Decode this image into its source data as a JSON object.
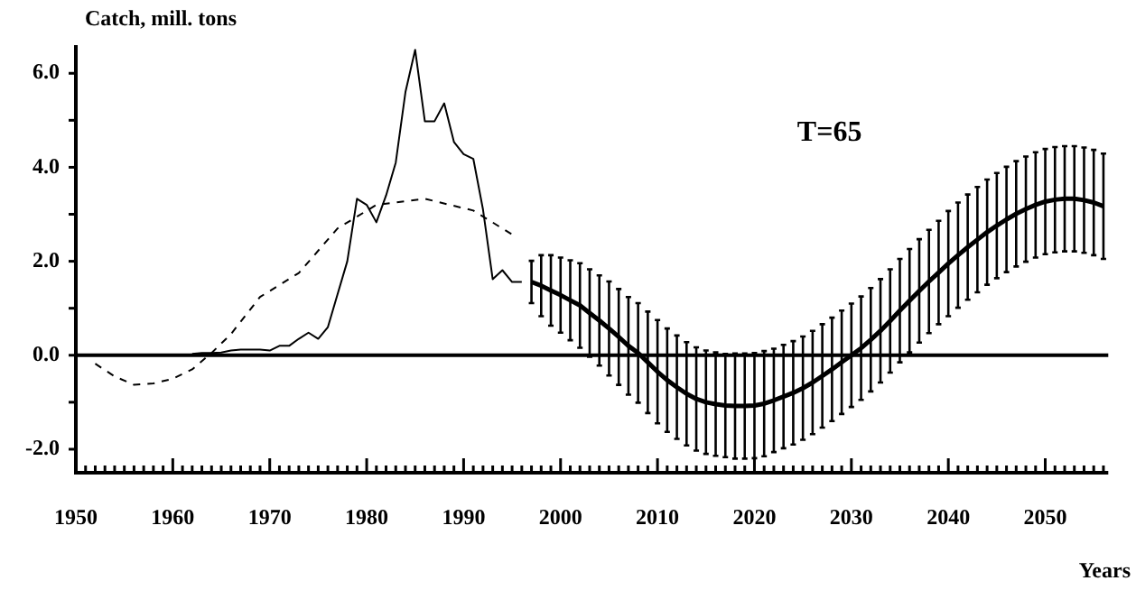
{
  "chart_data": {
    "type": "line",
    "ylabel": "Catch, mill. tons",
    "xlabel": "Years",
    "annotations": [
      "T=65"
    ],
    "marker": "none",
    "xlim": [
      1950,
      2056.5
    ],
    "ylim": [
      -2.5,
      6.6
    ],
    "xticks": [
      1950,
      {
        "value": 1951,
        "label": null
      },
      {
        "value": 1952,
        "label": null
      },
      {
        "value": 1953,
        "label": null
      },
      {
        "value": 1954,
        "label": null
      },
      {
        "value": 1955,
        "label": null
      },
      {
        "value": 1956,
        "label": null
      },
      {
        "value": 1957,
        "label": null
      },
      {
        "value": 1958,
        "label": null
      },
      {
        "value": 1959,
        "label": null
      },
      1960,
      {
        "value": 1961,
        "label": null
      },
      {
        "value": 1962,
        "label": null
      },
      {
        "value": 1963,
        "label": null
      },
      {
        "value": 1964,
        "label": null
      },
      {
        "value": 1965,
        "label": null
      },
      {
        "value": 1966,
        "label": null
      },
      {
        "value": 1967,
        "label": null
      },
      {
        "value": 1968,
        "label": null
      },
      {
        "value": 1969,
        "label": null
      },
      1970,
      {
        "value": 1971,
        "label": null
      },
      {
        "value": 1972,
        "label": null
      },
      {
        "value": 1973,
        "label": null
      },
      {
        "value": 1974,
        "label": null
      },
      {
        "value": 1975,
        "label": null
      },
      {
        "value": 1976,
        "label": null
      },
      {
        "value": 1977,
        "label": null
      },
      {
        "value": 1978,
        "label": null
      },
      {
        "value": 1979,
        "label": null
      },
      1980,
      {
        "value": 1981,
        "label": null
      },
      {
        "value": 1982,
        "label": null
      },
      {
        "value": 1983,
        "label": null
      },
      {
        "value": 1984,
        "label": null
      },
      {
        "value": 1985,
        "label": null
      },
      {
        "value": 1986,
        "label": null
      },
      {
        "value": 1987,
        "label": null
      },
      {
        "value": 1988,
        "label": null
      },
      {
        "value": 1989,
        "label": null
      },
      1990,
      {
        "value": 1991,
        "label": null
      },
      {
        "value": 1992,
        "label": null
      },
      {
        "value": 1993,
        "label": null
      },
      {
        "value": 1994,
        "label": null
      },
      {
        "value": 1995,
        "label": null
      },
      {
        "value": 1996,
        "label": null
      },
      {
        "value": 1997,
        "label": null
      },
      {
        "value": 1998,
        "label": null
      },
      {
        "value": 1999,
        "label": null
      },
      2000,
      {
        "value": 2001,
        "label": null
      },
      {
        "value": 2002,
        "label": null
      },
      {
        "value": 2003,
        "label": null
      },
      {
        "value": 2004,
        "label": null
      },
      {
        "value": 2005,
        "label": null
      },
      {
        "value": 2006,
        "label": null
      },
      {
        "value": 2007,
        "label": null
      },
      {
        "value": 2008,
        "label": null
      },
      {
        "value": 2009,
        "label": null
      },
      2010,
      {
        "value": 2011,
        "label": null
      },
      {
        "value": 2012,
        "label": null
      },
      {
        "value": 2013,
        "label": null
      },
      {
        "value": 2014,
        "label": null
      },
      {
        "value": 2015,
        "label": null
      },
      {
        "value": 2016,
        "label": null
      },
      {
        "value": 2017,
        "label": null
      },
      {
        "value": 2018,
        "label": null
      },
      {
        "value": 2019,
        "label": null
      },
      2020,
      {
        "value": 2021,
        "label": null
      },
      {
        "value": 2022,
        "label": null
      },
      {
        "value": 2023,
        "label": null
      },
      {
        "value": 2024,
        "label": null
      },
      {
        "value": 2025,
        "label": null
      },
      {
        "value": 2026,
        "label": null
      },
      {
        "value": 2027,
        "label": null
      },
      {
        "value": 2028,
        "label": null
      },
      {
        "value": 2029,
        "label": null
      },
      2030,
      {
        "value": 2031,
        "label": null
      },
      {
        "value": 2032,
        "label": null
      },
      {
        "value": 2033,
        "label": null
      },
      {
        "value": 2034,
        "label": null
      },
      {
        "value": 2035,
        "label": null
      },
      {
        "value": 2036,
        "label": null
      },
      {
        "value": 2037,
        "label": null
      },
      {
        "value": 2038,
        "label": null
      },
      {
        "value": 2039,
        "label": null
      },
      2040,
      {
        "value": 2041,
        "label": null
      },
      {
        "value": 2042,
        "label": null
      },
      {
        "value": 2043,
        "label": null
      },
      {
        "value": 2044,
        "label": null
      },
      {
        "value": 2045,
        "label": null
      },
      {
        "value": 2046,
        "label": null
      },
      {
        "value": 2047,
        "label": null
      },
      {
        "value": 2048,
        "label": null
      },
      {
        "value": 2049,
        "label": null
      },
      2050,
      {
        "value": 2051,
        "label": null
      },
      {
        "value": 2052,
        "label": null
      },
      {
        "value": 2053,
        "label": null
      },
      {
        "value": 2054,
        "label": null
      },
      {
        "value": 2055,
        "label": null
      },
      {
        "value": 2056,
        "label": null
      }
    ],
    "yticks": [
      {
        "value": -2,
        "label": "-2.0"
      },
      {
        "value": -1,
        "label": null
      },
      {
        "value": 0,
        "label": "0.0"
      },
      {
        "value": 1,
        "label": null
      },
      {
        "value": 2,
        "label": "2.0"
      },
      {
        "value": 3,
        "label": null
      },
      {
        "value": 4,
        "label": "4.0"
      },
      {
        "value": 5,
        "label": null
      },
      {
        "value": 6,
        "label": "6.0"
      }
    ],
    "ref_lines": [
      {
        "axis": "y",
        "value": 0,
        "color": "#000000"
      }
    ],
    "series": [
      {
        "color": "#000000",
        "line_style": "solid",
        "x": [
          1962,
          1963,
          1964,
          1965,
          1966,
          1967,
          1968,
          1969,
          1970,
          1971,
          1972,
          1973,
          1974,
          1975,
          1976,
          1977,
          1978,
          1979,
          1980,
          1981,
          1982,
          1983,
          1984,
          1985,
          1986,
          1987,
          1988,
          1989,
          1990,
          1991,
          1992,
          1993,
          1994,
          1995,
          1996
        ],
        "values": [
          0.03,
          0.05,
          0.05,
          0.06,
          0.1,
          0.12,
          0.12,
          0.12,
          0.1,
          0.2,
          0.2,
          0.35,
          0.48,
          0.35,
          0.6,
          1.3,
          2.0,
          3.33,
          3.2,
          2.83,
          3.4,
          4.1,
          5.6,
          6.5,
          4.98,
          4.98,
          5.36,
          4.54,
          4.28,
          4.18,
          3.1,
          1.62,
          1.81,
          1.56,
          1.56
        ]
      },
      {
        "color": "#000000",
        "line_style": "dashed",
        "x": [
          1952,
          1954,
          1956,
          1958,
          1960,
          1962,
          1964,
          1966,
          1969,
          1973,
          1977,
          1981,
          1986,
          1991,
          1995
        ],
        "values": [
          -0.18,
          -0.45,
          -0.63,
          -0.6,
          -0.5,
          -0.3,
          0.05,
          0.45,
          1.24,
          1.75,
          2.7,
          3.2,
          3.33,
          3.08,
          2.57
        ]
      },
      {
        "color": "#000000",
        "line_style": "solid",
        "x": [
          1997,
          1998,
          1999,
          2000,
          2001,
          2002,
          2003,
          2004,
          2005,
          2006,
          2007,
          2008,
          2009,
          2010,
          2011,
          2012,
          2013,
          2014,
          2015,
          2016,
          2017,
          2018,
          2019,
          2020,
          2021,
          2022,
          2023,
          2024,
          2025,
          2026,
          2027,
          2028,
          2029,
          2030,
          2031,
          2032,
          2033,
          2034,
          2035,
          2036,
          2037,
          2038,
          2039,
          2040,
          2041,
          2042,
          2043,
          2044,
          2045,
          2046,
          2047,
          2048,
          2049,
          2050,
          2051,
          2052,
          2053,
          2054,
          2055,
          2056
        ],
        "values": [
          1.56,
          1.48,
          1.38,
          1.28,
          1.17,
          1.06,
          0.9,
          0.74,
          0.57,
          0.39,
          0.2,
          0.05,
          -0.15,
          -0.35,
          -0.53,
          -0.68,
          -0.82,
          -0.93,
          -1.0,
          -1.04,
          -1.07,
          -1.08,
          -1.08,
          -1.07,
          -1.03,
          -0.96,
          -0.88,
          -0.8,
          -0.7,
          -0.58,
          -0.44,
          -0.3,
          -0.15,
          0.0,
          0.15,
          0.33,
          0.52,
          0.73,
          0.95,
          1.16,
          1.37,
          1.57,
          1.76,
          1.95,
          2.13,
          2.3,
          2.46,
          2.62,
          2.76,
          2.89,
          3.01,
          3.11,
          3.2,
          3.27,
          3.31,
          3.33,
          3.33,
          3.3,
          3.25,
          3.17
        ],
        "errors": [
          0.45,
          0.65,
          0.75,
          0.8,
          0.85,
          0.9,
          0.93,
          0.96,
          1.0,
          1.02,
          1.04,
          1.06,
          1.08,
          1.1,
          1.1,
          1.1,
          1.1,
          1.1,
          1.1,
          1.1,
          1.1,
          1.12,
          1.12,
          1.12,
          1.12,
          1.1,
          1.1,
          1.1,
          1.1,
          1.1,
          1.1,
          1.1,
          1.1,
          1.1,
          1.1,
          1.1,
          1.1,
          1.1,
          1.1,
          1.1,
          1.1,
          1.1,
          1.1,
          1.12,
          1.12,
          1.12,
          1.12,
          1.12,
          1.12,
          1.12,
          1.12,
          1.12,
          1.12,
          1.12,
          1.12,
          1.12,
          1.12,
          1.12,
          1.12,
          1.12
        ]
      }
    ]
  }
}
